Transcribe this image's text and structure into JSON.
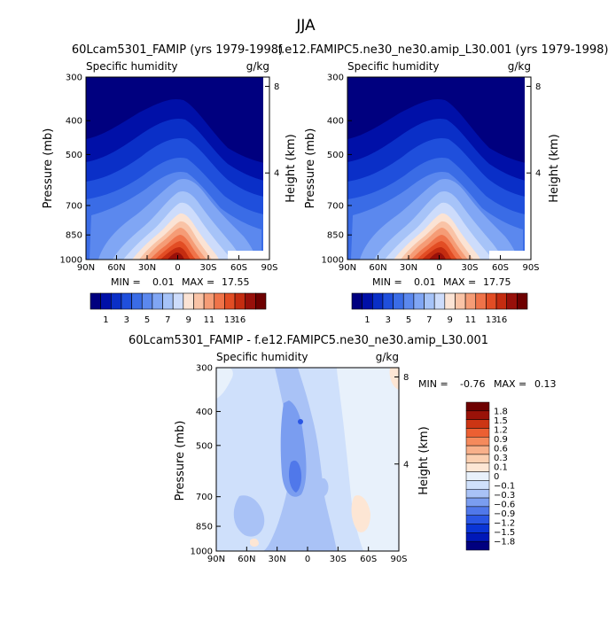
{
  "figure": {
    "title": "JJA",
    "panel_left_title": "60Lcam5301_FAMIP (yrs 1979-1998)",
    "panel_right_title": "f.e12.FAMIPC5.ne30_ne30.amip_L30.001 (yrs 1979-1998)",
    "panel_diff_title": "60Lcam5301_FAMIP - f.e12.FAMIPC5.ne30_ne30.amip_L30.001"
  },
  "colors": {
    "abs_levels": [
      "#00007f",
      "#0010a8",
      "#0a2fc7",
      "#1f4fdc",
      "#3a6ce6",
      "#5b88ee",
      "#80a6f4",
      "#a6c3f8",
      "#cddcfb",
      "#fbe3d4",
      "#f9c3a6",
      "#f59c76",
      "#ef7349",
      "#e24d24",
      "#c42c10",
      "#98100a",
      "#6e0000"
    ],
    "diff_levels": [
      "#00007f",
      "#0018b8",
      "#0a35d6",
      "#2a56e4",
      "#5078ea",
      "#7a9df0",
      "#a9c2f6",
      "#cfe0fb",
      "#e8f1fb",
      "#fde6d4",
      "#fbcfb0",
      "#f8b08a",
      "#f58a5c",
      "#ec5f32",
      "#cc3514",
      "#9a1208",
      "#6e0000"
    ]
  },
  "chart_data": [
    {
      "type": "heatmap",
      "title": "60Lcam5301_FAMIP (yrs 1979-1998)",
      "field_label": "Specific humidity",
      "units": "g/kg",
      "ylabel": "Pressure (mb)",
      "y2label": "Height (km)",
      "x_ticks": [
        "90N",
        "60N",
        "30N",
        "0",
        "30S",
        "60S",
        "90S"
      ],
      "y_ticks": [
        "300",
        "400",
        "500",
        "700",
        "850",
        "1000"
      ],
      "y2_ticks": [
        "8",
        "4"
      ],
      "stats": {
        "min_label": "MIN =",
        "min": "0.01",
        "max_label": "MAX =",
        "max": "17.55"
      },
      "ylim": [
        1000,
        300
      ],
      "xlim": [
        "90N",
        "90S"
      ],
      "y_scale": "log-pressure",
      "peak_location": {
        "lat": -8,
        "pressure": 1000,
        "value": 17.55
      }
    },
    {
      "type": "heatmap",
      "title": "f.e12.FAMIPC5.ne30_ne30.amip_L30.001 (yrs 1979-1998)",
      "field_label": "Specific humidity",
      "units": "g/kg",
      "ylabel": "Pressure (mb)",
      "y2label": "Height (km)",
      "x_ticks": [
        "90N",
        "60N",
        "30N",
        "0",
        "30S",
        "60S",
        "90S"
      ],
      "y_ticks": [
        "300",
        "400",
        "500",
        "700",
        "850",
        "1000"
      ],
      "y2_ticks": [
        "8",
        "4"
      ],
      "stats": {
        "min_label": "MIN =",
        "min": "0.01",
        "max_label": "MAX =",
        "max": "17.75"
      },
      "ylim": [
        1000,
        300
      ],
      "xlim": [
        "90N",
        "90S"
      ],
      "y_scale": "log-pressure",
      "peak_location": {
        "lat": -8,
        "pressure": 1000,
        "value": 17.75
      }
    },
    {
      "type": "heatmap",
      "title": "60Lcam5301_FAMIP - f.e12.FAMIPC5.ne30_ne30.amip_L30.001",
      "field_label": "Specific humidity",
      "units": "g/kg",
      "ylabel": "Pressure (mb)",
      "y2label": "Height (km)",
      "x_ticks": [
        "90N",
        "60N",
        "30N",
        "0",
        "30S",
        "60S",
        "90S"
      ],
      "y_ticks": [
        "300",
        "400",
        "500",
        "700",
        "850",
        "1000"
      ],
      "y2_ticks": [
        "8",
        "4"
      ],
      "stats": {
        "min_label": "MIN =",
        "min": "-0.76",
        "max_label": "MAX =",
        "max": "0.13"
      },
      "ylim": [
        1000,
        300
      ],
      "xlim": [
        "90N",
        "90S"
      ],
      "y_scale": "log-pressure",
      "min_location": {
        "lat": -2,
        "pressure": 720,
        "value": -0.76
      },
      "max_location": {
        "lat": -75,
        "pressure": 800,
        "value": 0.13
      }
    }
  ],
  "colorbar_abs": {
    "orientation": "horizontal",
    "labels": [
      "1",
      "3",
      "5",
      "7",
      "9",
      "11",
      "13",
      "16"
    ]
  },
  "colorbar_diff": {
    "orientation": "vertical",
    "labels": [
      "1.8",
      "1.5",
      "1.2",
      "0.9",
      "0.6",
      "0.3",
      "0.1",
      "0",
      "−0.1",
      "−0.3",
      "−0.6",
      "−0.9",
      "−1.2",
      "−1.5",
      "−1.8"
    ]
  }
}
